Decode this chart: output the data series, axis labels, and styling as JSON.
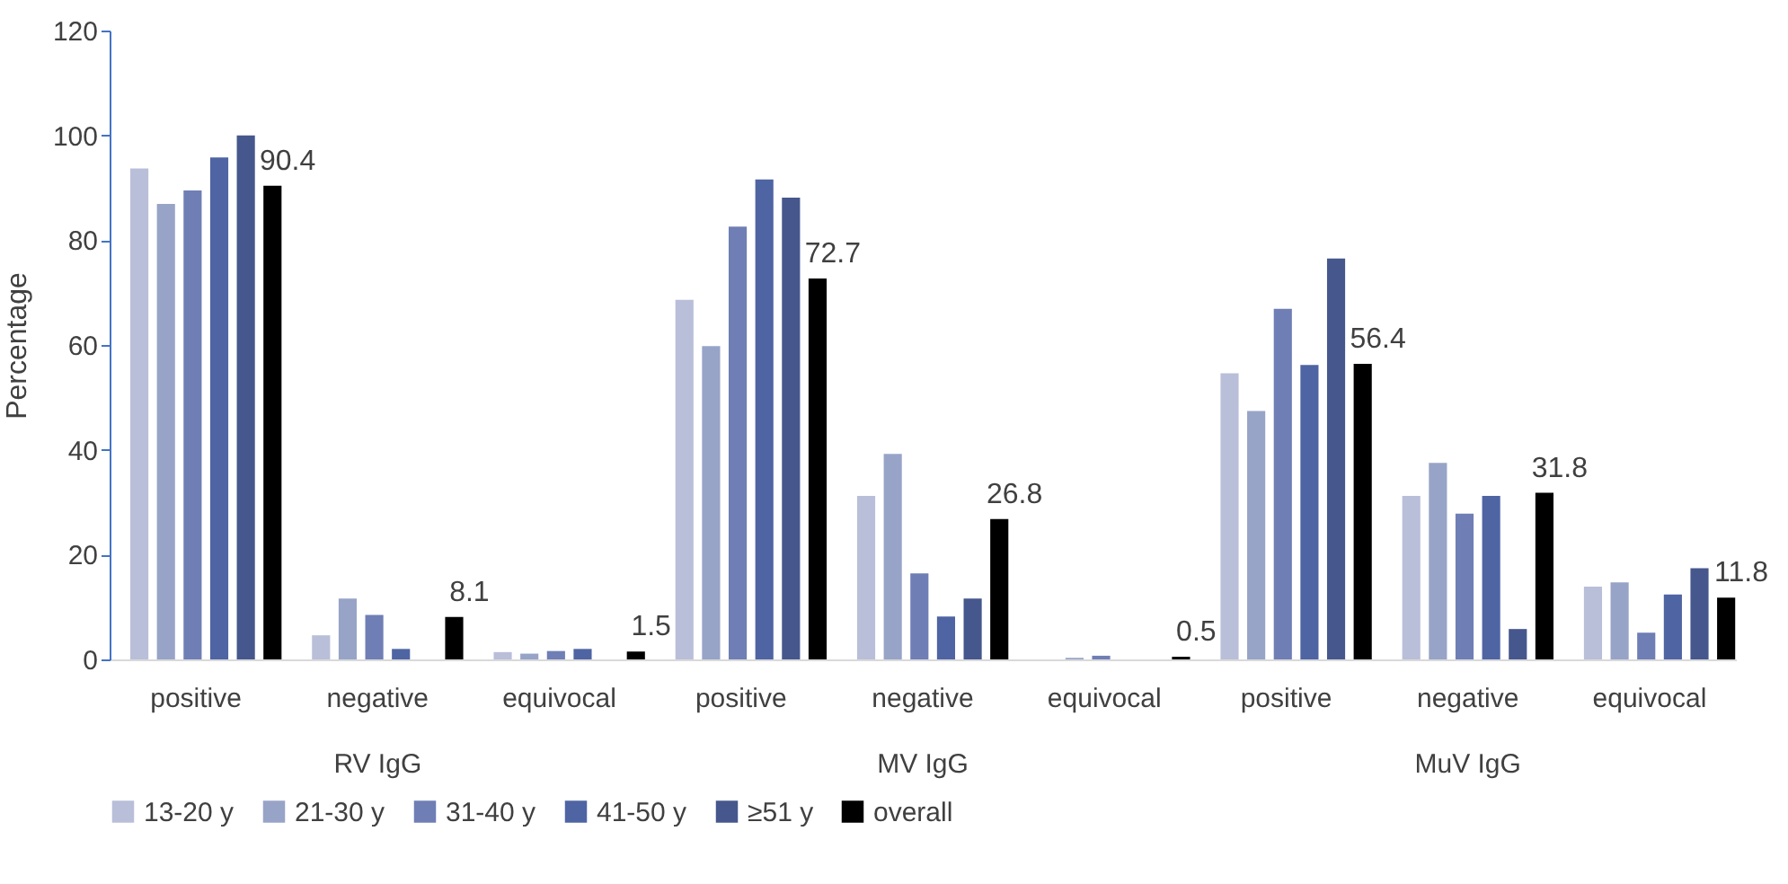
{
  "chart_data": {
    "type": "bar",
    "ylabel": "Percentage",
    "categories": [
      "positive",
      "negative",
      "equivocal",
      "positive",
      "negative",
      "equivocal",
      "positive",
      "negative",
      "equivocal"
    ],
    "annotations": [
      "RV IgG",
      "MV IgG",
      "MuV IgG"
    ],
    "series": [
      {
        "name": "13-20 y",
        "color": "#b9bfd9",
        "values": [
          93.7,
          4.6,
          1.4,
          68.6,
          31.2,
          0,
          54.6,
          31.2,
          13.9
        ]
      },
      {
        "name": "21-30 y",
        "color": "#98a3c8",
        "values": [
          86.9,
          11.6,
          1.1,
          59.8,
          39.2,
          0.3,
          47.4,
          37.5,
          14.7
        ]
      },
      {
        "name": "31-40 y",
        "color": "#6f7fb5",
        "values": [
          89.5,
          8.5,
          1.6,
          82.6,
          16.4,
          0.7,
          66.9,
          27.8,
          5.1
        ]
      },
      {
        "name": "41-50 y",
        "color": "#4f65a3",
        "values": [
          95.8,
          2.0,
          2.0,
          91.6,
          8.2,
          0,
          56.2,
          31.2,
          12.4
        ]
      },
      {
        "name": "≥51 y",
        "color": "#45578c",
        "values": [
          100,
          0,
          0,
          88.1,
          11.6,
          0,
          76.5,
          5.8,
          17.4
        ]
      },
      {
        "name": "overall",
        "color": "#000000",
        "values": [
          90.4,
          8.1,
          1.5,
          72.7,
          26.8,
          0.5,
          56.4,
          31.8,
          11.8
        ],
        "value_labels": [
          "90.4",
          "8.1",
          "1.5",
          "72.7",
          "26.8",
          "0.5",
          "56.4",
          "31.8",
          "11.8"
        ]
      }
    ],
    "ylim": [
      0,
      120
    ],
    "yticks": [
      0,
      20,
      40,
      60,
      80,
      100,
      120
    ],
    "grid": false,
    "legend": "bottom"
  }
}
